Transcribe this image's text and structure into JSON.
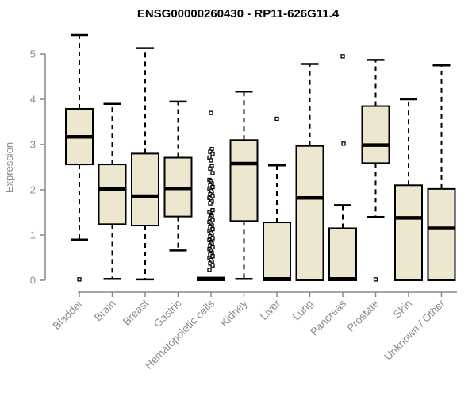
{
  "chart_data": {
    "type": "boxplot",
    "title": "ENSG00000260430 - RP11-626G11.4",
    "ylabel": "Expression",
    "xlabel": "",
    "ylim": [
      0,
      5.45
    ],
    "yticks": [
      0,
      1,
      2,
      3,
      4,
      5
    ],
    "grid": false,
    "legend": "none",
    "categories": [
      "Bladder",
      "Brain",
      "Breast",
      "Gastric",
      "Hematopoietic cells",
      "Kidney",
      "Liver",
      "Lung",
      "Pancreas",
      "Prostate",
      "Skin",
      "Unknown / Other"
    ],
    "boxes": [
      {
        "category": "Bladder",
        "whisker_low": 0.9,
        "q1": 2.56,
        "median": 3.17,
        "q3": 3.79,
        "whisker_high": 5.42,
        "outliers": [
          0.02
        ]
      },
      {
        "category": "Brain",
        "whisker_low": 0.03,
        "q1": 1.24,
        "median": 2.02,
        "q3": 2.56,
        "whisker_high": 3.9,
        "outliers": []
      },
      {
        "category": "Breast",
        "whisker_low": 0.02,
        "q1": 1.21,
        "median": 1.86,
        "q3": 2.8,
        "whisker_high": 5.13,
        "outliers": []
      },
      {
        "category": "Gastric",
        "whisker_low": 0.66,
        "q1": 1.41,
        "median": 2.03,
        "q3": 2.71,
        "whisker_high": 3.95,
        "outliers": []
      },
      {
        "category": "Hematopoietic cells",
        "whisker_low": 0,
        "q1": 0,
        "median": 0.03,
        "q3": 0.06,
        "whisker_high": 0.06,
        "outliers": [
          3.7,
          2.9,
          2.84,
          2.79,
          2.71,
          2.65,
          2.52,
          2.47,
          2.37,
          2.22,
          2.18,
          2.14,
          2.1,
          2.06,
          2.02,
          1.98,
          1.94,
          1.9,
          1.86,
          1.82,
          1.78,
          1.74,
          1.7,
          1.55,
          1.5,
          1.45,
          1.41,
          1.37,
          1.33,
          1.29,
          1.25,
          1.21,
          1.17,
          1.13,
          1.09,
          1.05,
          1.01,
          0.97,
          0.93,
          0.89,
          0.85,
          0.81,
          0.77,
          0.73,
          0.69,
          0.65,
          0.61,
          0.57,
          0.53,
          0.49,
          0.45,
          0.41,
          0.37,
          0.33,
          0.23
        ]
      },
      {
        "category": "Kidney",
        "whisker_low": 0.03,
        "q1": 1.31,
        "median": 2.58,
        "q3": 3.1,
        "whisker_high": 4.17,
        "outliers": []
      },
      {
        "category": "Liver",
        "whisker_low": 0,
        "q1": 0,
        "median": 0.03,
        "q3": 1.28,
        "whisker_high": 2.54,
        "outliers": [
          3.57
        ]
      },
      {
        "category": "Lung",
        "whisker_low": 0,
        "q1": 0,
        "median": 1.82,
        "q3": 2.97,
        "whisker_high": 4.78,
        "outliers": []
      },
      {
        "category": "Pancreas",
        "whisker_low": 0,
        "q1": 0,
        "median": 0.03,
        "q3": 1.15,
        "whisker_high": 1.66,
        "outliers": [
          4.95,
          3.02
        ]
      },
      {
        "category": "Prostate",
        "whisker_low": 1.4,
        "q1": 2.59,
        "median": 2.99,
        "q3": 3.85,
        "whisker_high": 4.87,
        "outliers": [
          0.02
        ]
      },
      {
        "category": "Skin",
        "whisker_low": 0,
        "q1": 0,
        "median": 1.38,
        "q3": 2.1,
        "whisker_high": 4.0,
        "outliers": []
      },
      {
        "category": "Unknown / Other",
        "whisker_low": 0,
        "q1": 0,
        "median": 1.15,
        "q3": 2.02,
        "whisker_high": 4.75,
        "outliers": []
      }
    ]
  },
  "colors": {
    "box_fill": "#EDE7CF",
    "box_stroke": "#000000",
    "median": "#000000",
    "whisker": "#000000",
    "outlier_stroke": "#000000",
    "axis": "#888888",
    "tick_label": "#8C8C8C",
    "title": "#000000",
    "background": "#FFFFFF"
  }
}
